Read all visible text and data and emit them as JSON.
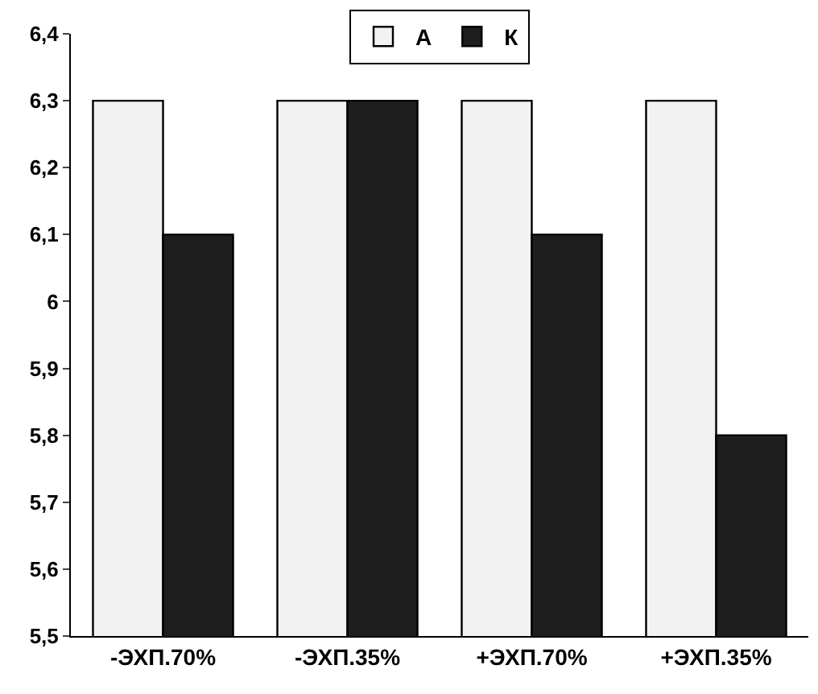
{
  "chart_data": {
    "type": "bar",
    "categories": [
      "-ЭХП.70%",
      "-ЭХП.35%",
      "+ЭХП.70%",
      "+ЭХП.35%"
    ],
    "series": [
      {
        "name": "А",
        "color": "#f2f2f2",
        "values": [
          6.3,
          6.3,
          6.3,
          6.3
        ]
      },
      {
        "name": "К",
        "color": "#1e1e1e",
        "values": [
          6.1,
          6.3,
          6.1,
          5.8
        ]
      }
    ],
    "ylim": [
      5.5,
      6.4
    ],
    "yticks": [
      {
        "value": 5.5,
        "label": "5,5"
      },
      {
        "value": 5.6,
        "label": "5,6"
      },
      {
        "value": 5.7,
        "label": "5,7"
      },
      {
        "value": 5.8,
        "label": "5,8"
      },
      {
        "value": 5.9,
        "label": "5,9"
      },
      6,
      {
        "value": 6.1,
        "label": "6,1"
      },
      {
        "value": 6.2,
        "label": "6,2"
      },
      {
        "value": 6.3,
        "label": "6,3"
      },
      {
        "value": 6.4,
        "label": "6,4"
      }
    ],
    "grid": false,
    "legend": "top"
  }
}
